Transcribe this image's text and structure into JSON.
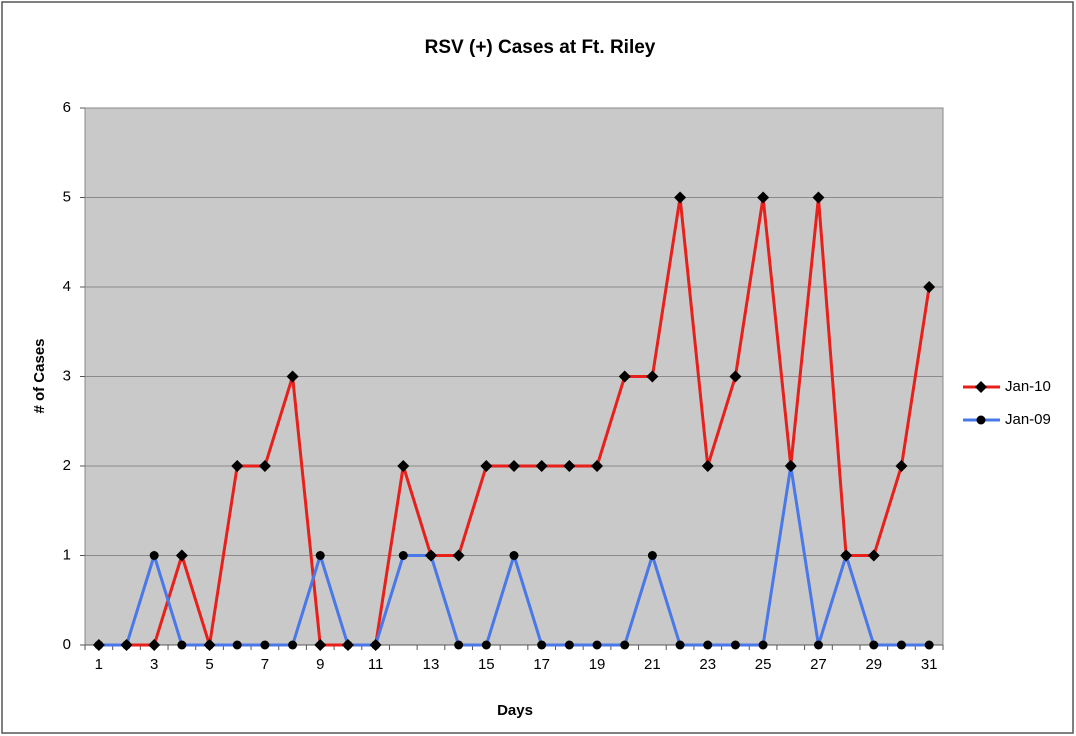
{
  "chart_data": {
    "type": "line",
    "title": "RSV (+) Cases at Ft. Riley",
    "x_label": "Days",
    "y_label": "# of Cases",
    "categories": [
      "1",
      null,
      "3",
      null,
      "5",
      null,
      "7",
      null,
      "9",
      null,
      "11",
      null,
      "13",
      null,
      "15",
      null,
      "17",
      null,
      "19",
      null,
      "21",
      null,
      "23",
      null,
      "25",
      null,
      "27",
      null,
      "29",
      null,
      "31"
    ],
    "series": [
      {
        "name": "Jan-10",
        "color": "#e8201c",
        "marker": "diamond",
        "values": [
          0,
          0,
          0,
          1,
          0,
          2,
          2,
          3,
          0,
          0,
          0,
          2,
          1,
          1,
          2,
          2,
          2,
          2,
          2,
          3,
          3,
          5,
          2,
          3,
          5,
          2,
          5,
          1,
          1,
          2,
          4
        ]
      },
      {
        "name": "Jan-09",
        "color": "#4a78e8",
        "marker": "circle",
        "values": [
          0,
          0,
          1,
          0,
          0,
          0,
          0,
          0,
          1,
          0,
          0,
          1,
          1,
          0,
          0,
          1,
          0,
          0,
          0,
          0,
          1,
          0,
          0,
          0,
          0,
          2,
          0,
          1,
          0,
          0,
          0
        ]
      }
    ],
    "ylim": [
      0,
      6
    ],
    "yticks": [
      0,
      1,
      2,
      3,
      4,
      5,
      6
    ],
    "grid": true,
    "legend": "right"
  }
}
